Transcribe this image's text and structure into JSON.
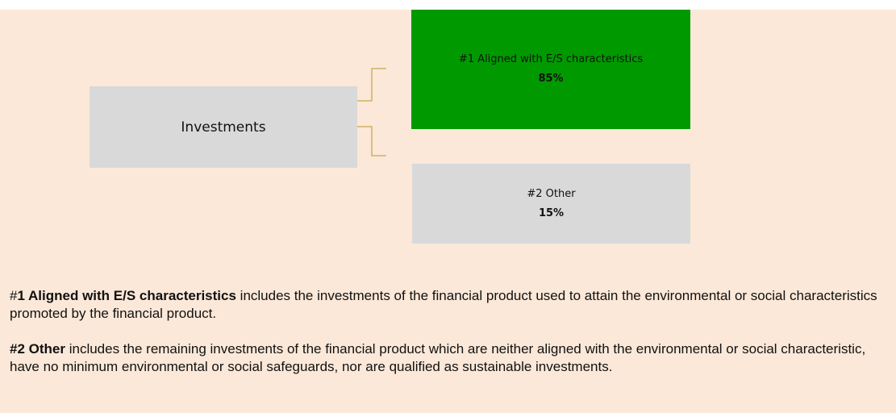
{
  "nodes": [
    {
      "label": "Investments"
    },
    {
      "label": "#1 Aligned with E/S characteristics",
      "share": "85%"
    },
    {
      "label": "#2 Other",
      "share": "15%"
    }
  ],
  "paragraphs": [
    {
      "prefix": "#",
      "bold": "1 Aligned with E/S characteristics",
      "text": " includes the investments of the financial product used to attain the environmental or social characteristics promoted by the financial product."
    },
    {
      "bold": "#2 Other",
      "text": " includes the remaining investments of the financial product which are neither aligned with the environmental or social characteristic, have no minimum environmental or social safeguards, nor are qualified as sustainable investments."
    }
  ]
}
